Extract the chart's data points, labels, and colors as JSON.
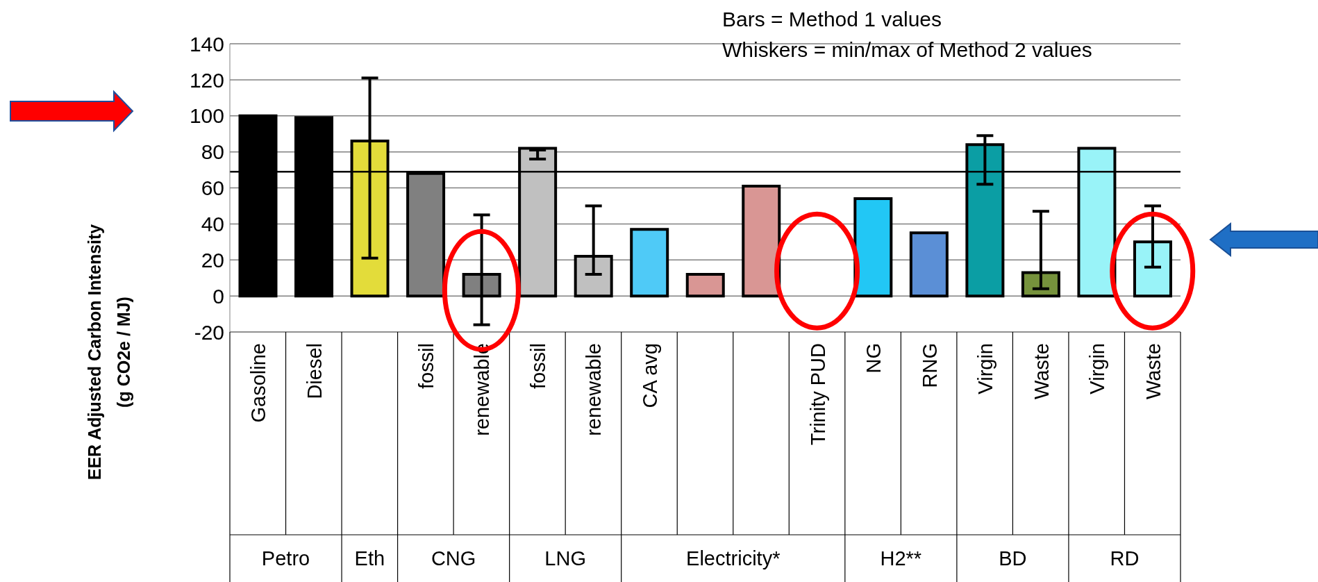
{
  "chart_data": {
    "type": "bar",
    "ylabel": "EER Adjusted Carbon Intensity\n(g CO2e / MJ)",
    "categories": [
      "Gasoline",
      "Diesel",
      null,
      "fossil",
      "renewable",
      "fossil",
      "renewable",
      "CA avg",
      null,
      null,
      "Trinity PUD",
      "NG",
      "RNG",
      "Virgin",
      "Waste",
      "Virgin",
      "Waste"
    ],
    "values": [
      100,
      99,
      86,
      68,
      12,
      82,
      22,
      37,
      12,
      61,
      0,
      54,
      35,
      84,
      13,
      82,
      30
    ],
    "errors": [
      null,
      null,
      [
        21,
        121
      ],
      null,
      [
        -16,
        45
      ],
      [
        76,
        81
      ],
      [
        12,
        50
      ],
      null,
      null,
      null,
      null,
      null,
      null,
      [
        62,
        89
      ],
      [
        4,
        47
      ],
      null,
      [
        16,
        50
      ]
    ],
    "colors": [
      "#000000",
      "#000000",
      "#e3dc3a",
      "#808080",
      "#808080",
      "#c0c0c0",
      "#c0c0c0",
      "#4fcaf7",
      "#d99694",
      "#d99694",
      "#d99694",
      "#22c7f5",
      "#5b8fd6",
      "#0b9ea4",
      "#76923c",
      "#99f3f8",
      "#99f3f8"
    ],
    "ylim": [
      -20,
      140
    ],
    "yticks": [
      -20,
      0,
      20,
      40,
      60,
      80,
      100,
      120,
      140
    ],
    "grid": "y",
    "ref_lines": [
      {
        "axis": "y",
        "value": 69,
        "color": "#000000"
      }
    ],
    "annotations": [
      "Bars = Method 1 values",
      "Whiskers = min/max of Method 2 values",
      "Petro",
      "Eth",
      "CNG",
      "LNG",
      "Electricity*",
      "H2**",
      "BD",
      "RD"
    ]
  }
}
